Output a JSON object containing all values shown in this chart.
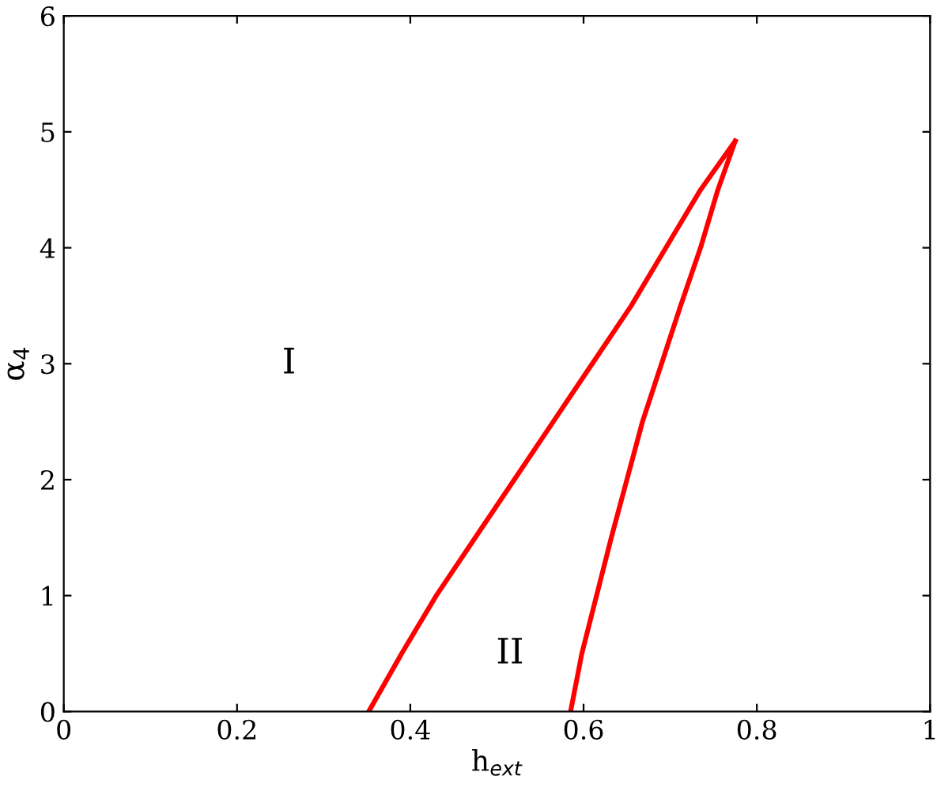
{
  "chart_data": {
    "type": "line",
    "xlabel": "h$_{ext}$",
    "ylabel": "α$_{4}$",
    "xlim": [
      0,
      1
    ],
    "ylim": [
      0,
      6
    ],
    "xticks": [
      0,
      0.2,
      0.4,
      0.6,
      0.8,
      1
    ],
    "yticks": [
      0,
      1,
      2,
      3,
      4,
      5,
      6
    ],
    "grid": false,
    "marker": "none",
    "line_style": "solid",
    "series": [
      {
        "color": "#ff0000",
        "x": [
          0.352,
          0.39,
          0.43,
          0.475,
          0.52,
          0.565,
          0.61,
          0.655,
          0.695,
          0.735,
          0.775
        ],
        "values": [
          0,
          0.5,
          1,
          1.5,
          2,
          2.5,
          3,
          3.5,
          4,
          4.5,
          4.92
        ]
      },
      {
        "color": "#ff0000",
        "x": [
          0.585,
          0.598,
          0.615,
          0.632,
          0.65,
          0.668,
          0.69,
          0.712,
          0.735,
          0.755,
          0.775
        ],
        "values": [
          0,
          0.5,
          1,
          1.5,
          2,
          2.5,
          3,
          3.5,
          4,
          4.5,
          4.92
        ]
      }
    ],
    "annotations": [
      "I",
      "II"
    ]
  }
}
